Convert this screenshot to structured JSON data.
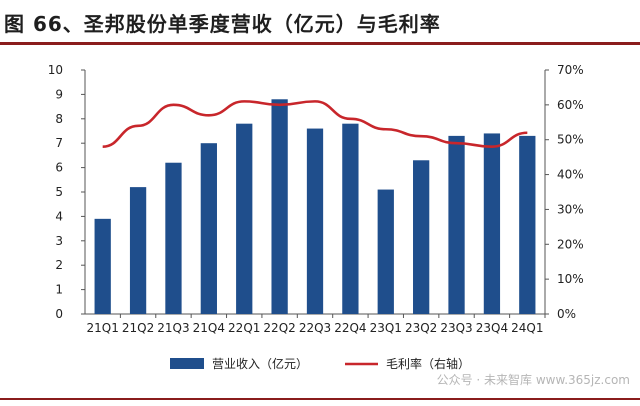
{
  "header": {
    "title": "图 66、圣邦股份单季度营收（亿元）与毛利率"
  },
  "watermark": "公众号 · 未来智库  www.365jz.com",
  "colors": {
    "bar": "#1f4e8c",
    "line": "#c8262b",
    "rule": "#8a1c1c"
  },
  "chart_data": {
    "type": "bar",
    "categories": [
      "21Q1",
      "21Q2",
      "21Q3",
      "21Q4",
      "22Q1",
      "22Q2",
      "22Q3",
      "22Q4",
      "23Q1",
      "23Q2",
      "23Q3",
      "23Q4",
      "24Q1"
    ],
    "series": [
      {
        "name": "营业收入（亿元）",
        "type": "bar",
        "axis": "left",
        "values": [
          3.9,
          5.2,
          6.2,
          7.0,
          7.8,
          8.8,
          7.6,
          7.8,
          5.1,
          6.3,
          7.3,
          7.4,
          7.3
        ]
      },
      {
        "name": "毛利率（右轴）",
        "type": "line",
        "axis": "right",
        "values": [
          48,
          54,
          60,
          57,
          61,
          60,
          61,
          56,
          53,
          51,
          49,
          48,
          52
        ]
      }
    ],
    "ylim_left": [
      0,
      10
    ],
    "yticks_left": [
      "0",
      "1",
      "2",
      "3",
      "4",
      "5",
      "6",
      "7",
      "8",
      "9",
      "10"
    ],
    "ylim_right": [
      0,
      70
    ],
    "yticks_right": [
      "0%",
      "10%",
      "20%",
      "30%",
      "40%",
      "50%",
      "60%",
      "70%"
    ],
    "grid": false,
    "legend_position": "bottom"
  }
}
